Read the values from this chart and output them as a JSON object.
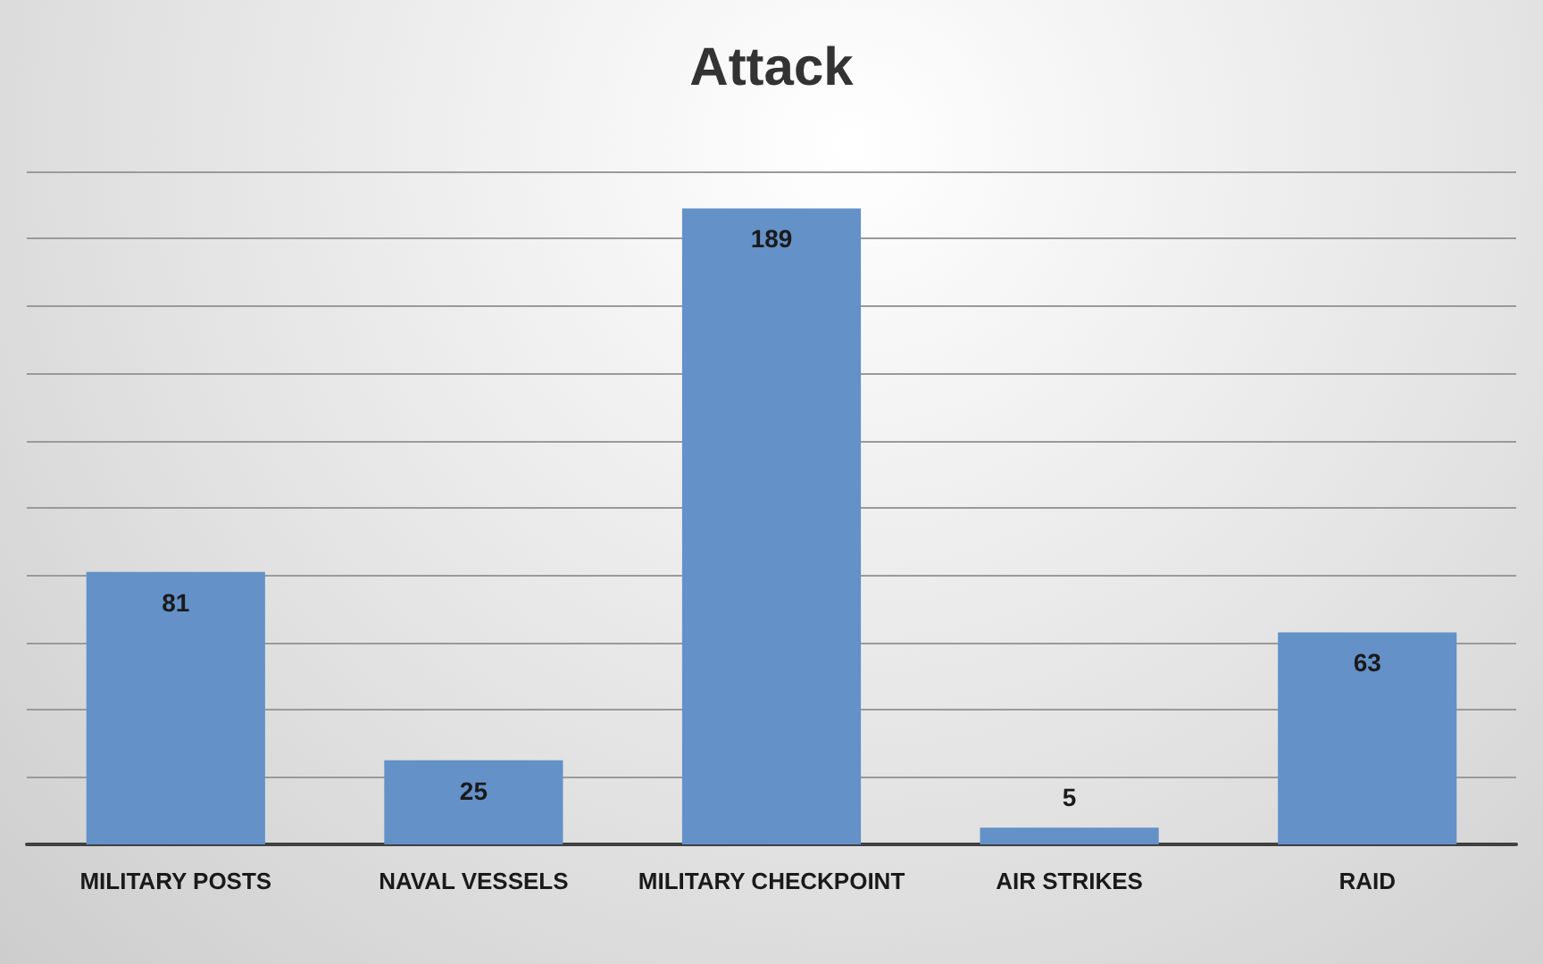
{
  "chart_data": {
    "type": "bar",
    "title": "Attack",
    "categories": [
      "MILITARY POSTS",
      "NAVAL VESSELS",
      "MILITARY CHECKPOINT",
      "AIR STRIKES",
      "RAID"
    ],
    "values": [
      81,
      25,
      189,
      5,
      63
    ],
    "color": "#6391c8",
    "data_labels": true,
    "ylim": [
      0,
      200
    ],
    "yticks": [
      {
        "value": 0,
        "label": null
      },
      {
        "value": 20,
        "label": null
      },
      {
        "value": 40,
        "label": null
      },
      {
        "value": 60,
        "label": null
      },
      {
        "value": 80,
        "label": null
      },
      {
        "value": 100,
        "label": null
      },
      {
        "value": 120,
        "label": null
      },
      {
        "value": 140,
        "label": null
      },
      {
        "value": 160,
        "label": null
      },
      {
        "value": 180,
        "label": null
      },
      {
        "value": 200,
        "label": null
      }
    ],
    "tick_labels": "x",
    "grid": "y"
  }
}
